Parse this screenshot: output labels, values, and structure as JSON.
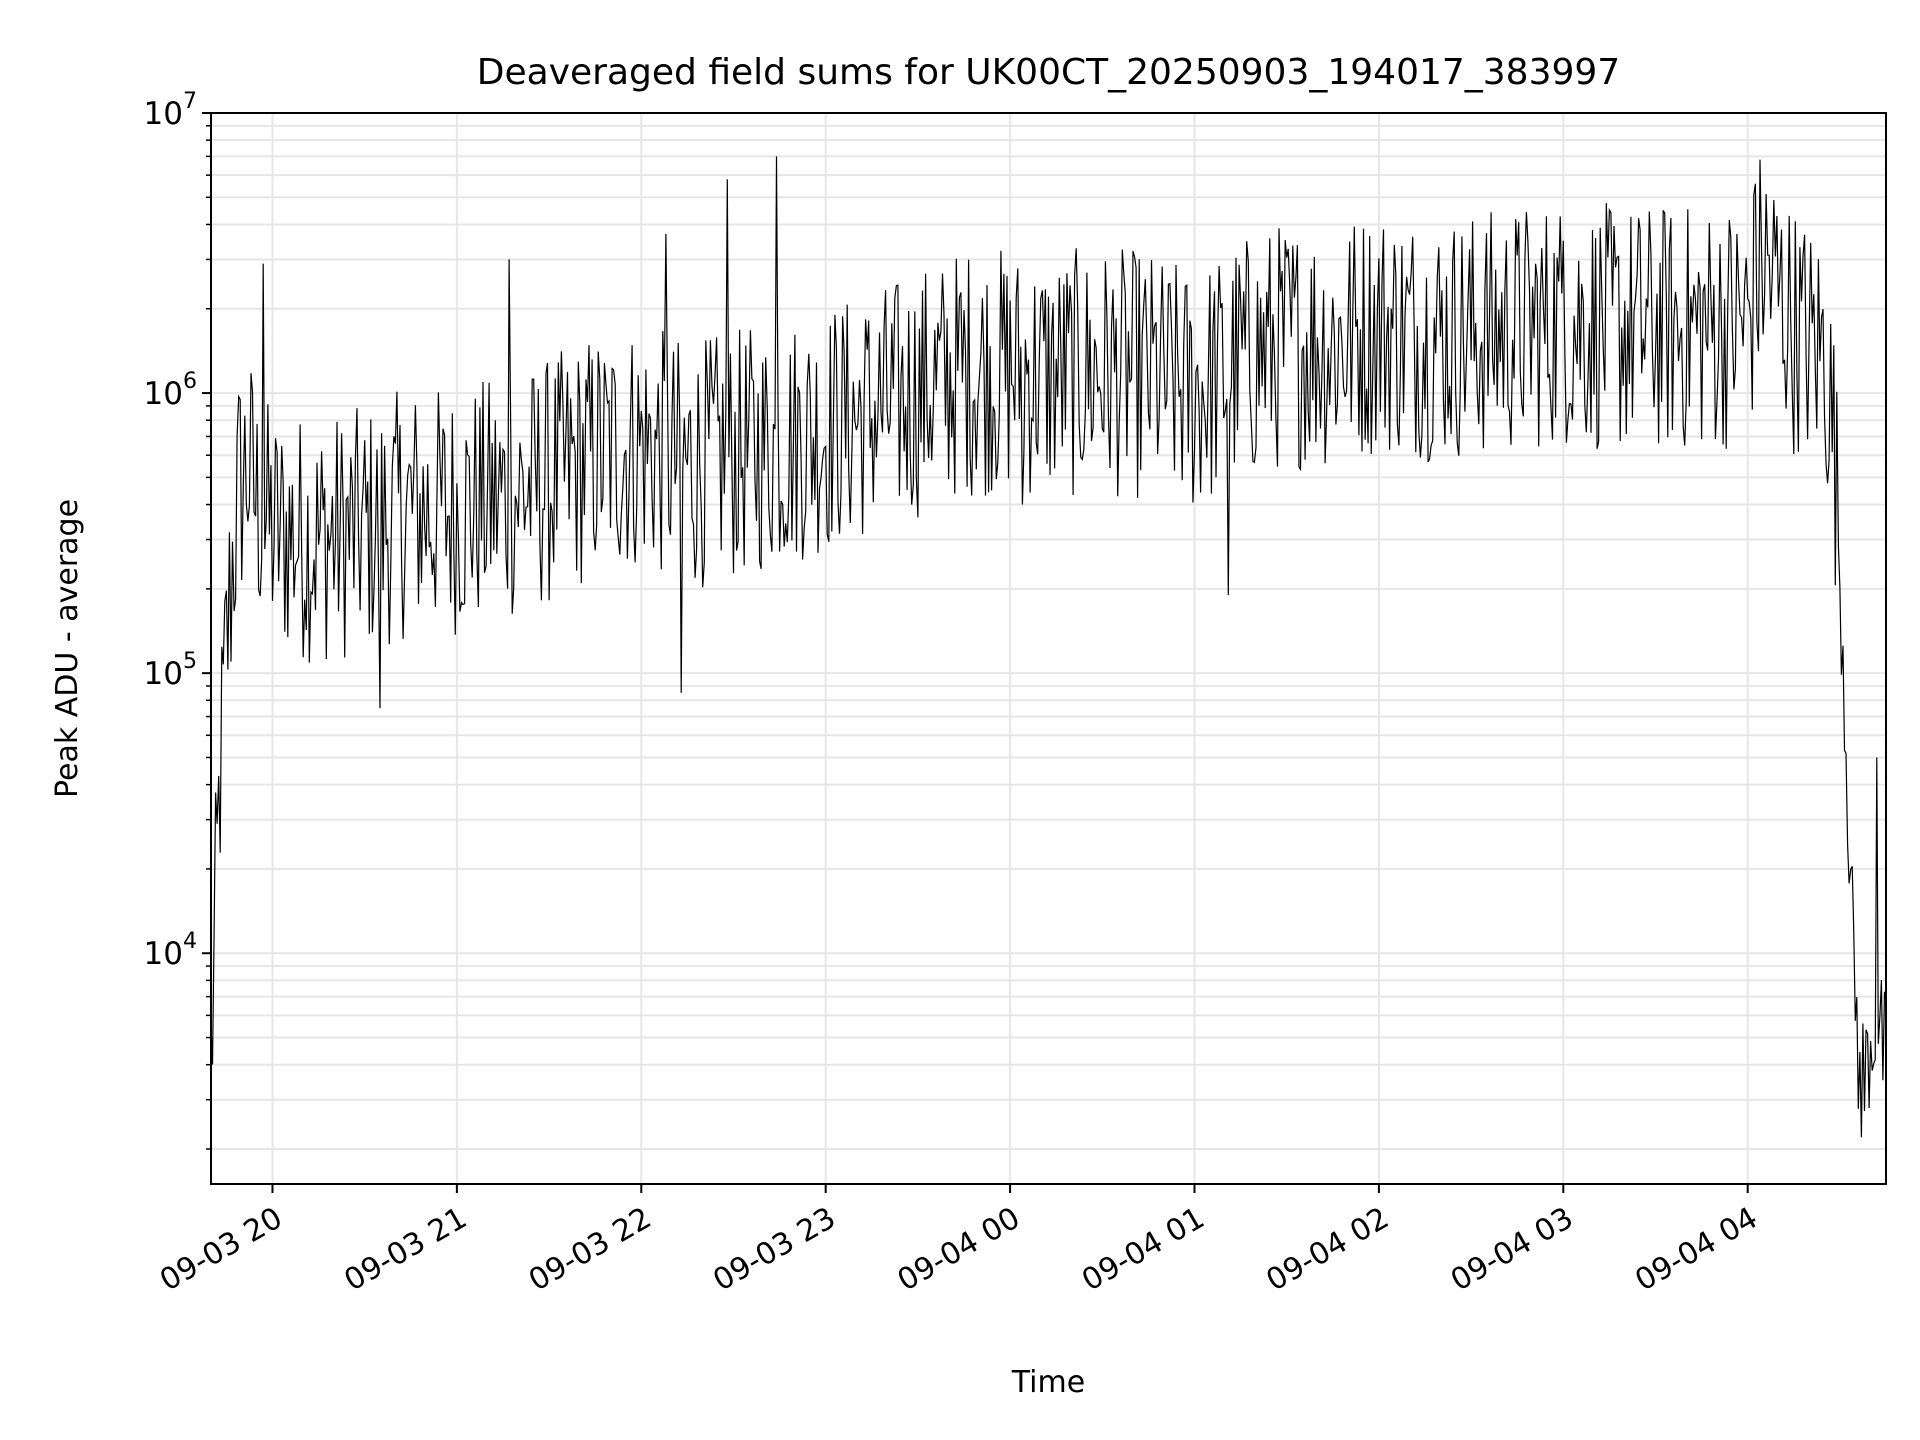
{
  "chart_data": {
    "type": "line",
    "title": "Deaveraged field sums for UK00CT_20250903_194017_383997",
    "xlabel": "Time",
    "ylabel": "Peak ADU - average",
    "yscale": "log",
    "ylim": [
      1500,
      10000000
    ],
    "xlim": [
      "2025-09-03 19:40",
      "2025-09-04 04:45"
    ],
    "grid": true,
    "x_ticks": [
      {
        "t": "2025-09-03 20:00",
        "label": "09-03 20"
      },
      {
        "t": "2025-09-03 21:00",
        "label": "09-03 21"
      },
      {
        "t": "2025-09-03 22:00",
        "label": "09-03 22"
      },
      {
        "t": "2025-09-03 23:00",
        "label": "09-03 23"
      },
      {
        "t": "2025-09-04 00:00",
        "label": "09-04 00"
      },
      {
        "t": "2025-09-04 01:00",
        "label": "09-04 01"
      },
      {
        "t": "2025-09-04 02:00",
        "label": "09-04 02"
      },
      {
        "t": "2025-09-04 03:00",
        "label": "09-04 03"
      },
      {
        "t": "2025-09-04 04:00",
        "label": "09-04 04"
      }
    ],
    "y_ticks": [
      {
        "v": 10000,
        "base": "10",
        "exp": "4"
      },
      {
        "v": 100000,
        "base": "10",
        "exp": "5"
      },
      {
        "v": 1000000,
        "base": "10",
        "exp": "6"
      },
      {
        "v": 10000000,
        "base": "10",
        "exp": "7"
      }
    ],
    "series": [
      {
        "color": "#000000",
        "points": [
          [
            "2025-09-03 19:40",
            4000
          ],
          [
            "2025-09-03 19:41",
            9000
          ],
          [
            "2025-09-03 19:42",
            20000
          ],
          [
            "2025-09-03 19:43",
            45000
          ],
          [
            "2025-09-03 19:44",
            70000
          ],
          [
            "2025-09-03 19:45",
            120000
          ],
          [
            "2025-09-03 19:47",
            250000
          ],
          [
            "2025-09-03 19:49",
            450000
          ],
          [
            "2025-09-03 19:52",
            550000
          ],
          [
            "2025-09-03 19:55",
            400000
          ],
          [
            "2025-09-03 19:58",
            350000
          ],
          [
            "2025-09-03 20:00",
            320000
          ],
          [
            "2025-09-03 20:15",
            300000
          ],
          [
            "2025-09-03 20:30",
            320000
          ],
          [
            "2025-09-03 20:45",
            380000
          ],
          [
            "2025-09-03 21:00",
            380000
          ],
          [
            "2025-09-03 21:15",
            420000
          ],
          [
            "2025-09-03 21:30",
            480000
          ],
          [
            "2025-09-03 21:45",
            600000
          ],
          [
            "2025-09-03 22:00",
            650000
          ],
          [
            "2025-09-03 22:15",
            550000
          ],
          [
            "2025-09-03 22:30",
            600000
          ],
          [
            "2025-09-03 22:45",
            650000
          ],
          [
            "2025-09-03 23:00",
            750000
          ],
          [
            "2025-09-03 23:15",
            850000
          ],
          [
            "2025-09-03 23:30",
            1000000
          ],
          [
            "2025-09-03 23:45",
            1200000
          ],
          [
            "2025-09-04 00:00",
            1200000
          ],
          [
            "2025-09-04 00:15",
            1150000
          ],
          [
            "2025-09-04 00:30",
            1200000
          ],
          [
            "2025-09-04 00:45",
            1150000
          ],
          [
            "2025-09-04 01:00",
            1000000
          ],
          [
            "2025-09-04 01:15",
            1300000
          ],
          [
            "2025-09-04 01:30",
            1500000
          ],
          [
            "2025-09-04 01:45",
            1500000
          ],
          [
            "2025-09-04 02:00",
            1700000
          ],
          [
            "2025-09-04 02:15",
            1600000
          ],
          [
            "2025-09-04 02:30",
            1600000
          ],
          [
            "2025-09-04 02:45",
            1700000
          ],
          [
            "2025-09-04 03:00",
            1800000
          ],
          [
            "2025-09-04 03:15",
            1700000
          ],
          [
            "2025-09-04 03:30",
            1700000
          ],
          [
            "2025-09-04 03:45",
            1700000
          ],
          [
            "2025-09-04 04:00",
            1800000
          ],
          [
            "2025-09-04 04:05",
            3000000
          ],
          [
            "2025-09-04 04:10",
            2300000
          ],
          [
            "2025-09-04 04:15",
            1700000
          ],
          [
            "2025-09-04 04:20",
            1500000
          ],
          [
            "2025-09-04 04:25",
            1400000
          ],
          [
            "2025-09-04 04:28",
            700000
          ],
          [
            "2025-09-04 04:30",
            250000
          ],
          [
            "2025-09-04 04:32",
            60000
          ],
          [
            "2025-09-04 04:34",
            12000
          ],
          [
            "2025-09-04 04:36",
            4500
          ],
          [
            "2025-09-04 04:38",
            3500
          ],
          [
            "2025-09-04 04:40",
            5000
          ],
          [
            "2025-09-04 04:42",
            6000
          ],
          [
            "2025-09-04 04:44",
            4500
          ],
          [
            "2025-09-04 04:45",
            4000
          ]
        ],
        "spikes": [
          [
            "2025-09-03 19:57",
            2900000
          ],
          [
            "2025-09-03 21:17",
            3000000
          ],
          [
            "2025-09-03 22:08",
            3700000
          ],
          [
            "2025-09-03 22:28",
            5800000
          ],
          [
            "2025-09-03 22:44",
            7000000
          ],
          [
            "2025-09-04 03:00",
            3500000
          ],
          [
            "2025-09-04 04:02",
            5100000
          ],
          [
            "2025-09-03 20:35",
            75000
          ],
          [
            "2025-09-03 22:13",
            85000
          ],
          [
            "2025-09-04 00:04",
            400000
          ],
          [
            "2025-09-04 01:11",
            190000
          ],
          [
            "2025-09-04 04:37",
            2200
          ],
          [
            "2025-09-04 04:42",
            50000
          ]
        ]
      }
    ]
  }
}
